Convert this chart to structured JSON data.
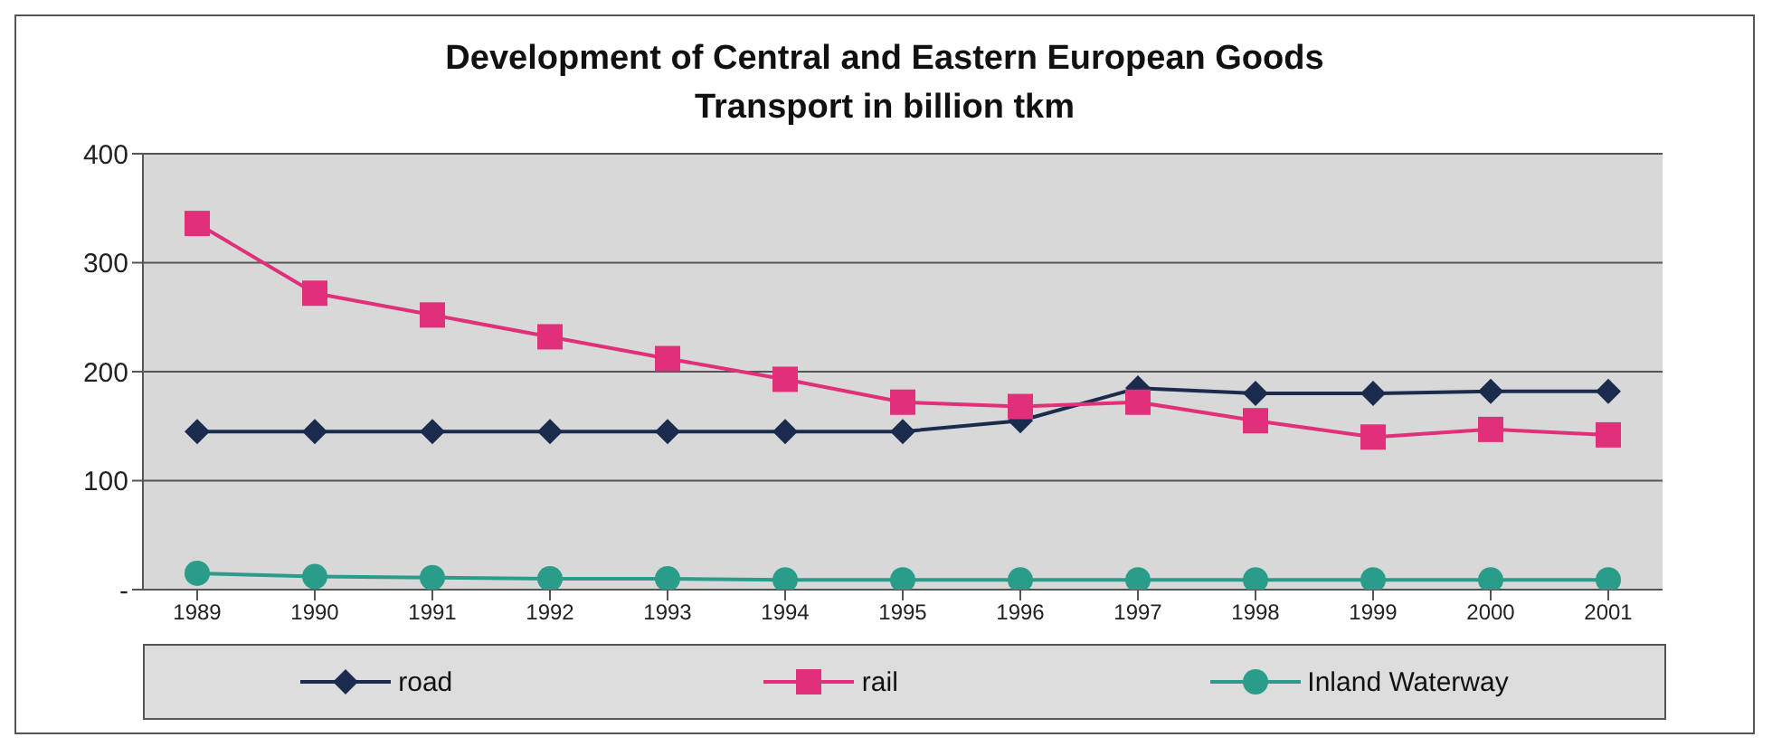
{
  "chart_data": {
    "type": "line",
    "title": "Development of Central and Eastern European Goods Transport in billion tkm",
    "categories": [
      "1989",
      "1990",
      "1991",
      "1992",
      "1993",
      "1994",
      "1995",
      "1996",
      "1997",
      "1998",
      "1999",
      "2000",
      "2001"
    ],
    "series": [
      {
        "name": "road",
        "color": "#1b2b4d",
        "marker": "diamond",
        "values": [
          145,
          145,
          145,
          145,
          145,
          145,
          145,
          155,
          185,
          180,
          180,
          182,
          182
        ]
      },
      {
        "name": "rail",
        "color": "#e0307a",
        "marker": "square",
        "values": [
          336,
          272,
          252,
          232,
          212,
          193,
          172,
          168,
          172,
          155,
          140,
          147,
          142
        ]
      },
      {
        "name": "Inland Waterway",
        "color": "#2a9d8a",
        "marker": "circle",
        "values": [
          15,
          12,
          11,
          10,
          10,
          9,
          9,
          9,
          9,
          9,
          9,
          9,
          9
        ]
      }
    ],
    "ylim": [
      0,
      400
    ],
    "yticks": [
      {
        "value": 0,
        "label": "-"
      },
      100,
      200,
      300,
      400
    ],
    "grid": "y",
    "legend": "bottom",
    "line_style": "solid"
  }
}
